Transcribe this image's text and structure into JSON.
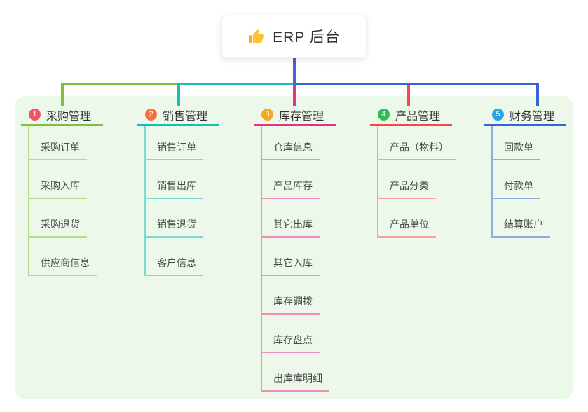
{
  "root": {
    "title": "ERP 后台",
    "icon": "thumbs-up-icon",
    "icon_color": "#fbc531"
  },
  "canvas": {
    "panel_bg": "#ecf8e9",
    "root_line_color": "#4464d9"
  },
  "branches": [
    {
      "number": "1",
      "title": "采购管理",
      "badge_color": "#f25767",
      "line_color": "#7ebf3f",
      "child_line_color": "#b5dc8e",
      "children": [
        "采购订单",
        "采购入库",
        "采购退货",
        "供应商信息"
      ]
    },
    {
      "number": "2",
      "title": "销售管理",
      "badge_color": "#f4703c",
      "line_color": "#16bfb2",
      "child_line_color": "#7fd8cd",
      "children": [
        "销售订单",
        "销售出库",
        "销售退货",
        "客户信息"
      ]
    },
    {
      "number": "3",
      "title": "库存管理",
      "badge_color": "#f6a623",
      "line_color": "#e0338f",
      "child_line_color": "#f08cc0",
      "children": [
        "仓库信息",
        "产品库存",
        "其它出库",
        "其它入库",
        "库存调拨",
        "库存盘点",
        "出库库明细"
      ]
    },
    {
      "number": "4",
      "title": "产品管理",
      "badge_color": "#2ebd52",
      "line_color": "#f5464c",
      "child_line_color": "#f8a0a0",
      "children": [
        "产品（物料）",
        "产品分类",
        "产品单位"
      ]
    },
    {
      "number": "5",
      "title": "财务管理",
      "badge_color": "#29a3e8",
      "line_color": "#3b63d8",
      "child_line_color": "#93a9e6",
      "children": [
        "回款单",
        "付款单",
        "结算账户"
      ]
    }
  ]
}
